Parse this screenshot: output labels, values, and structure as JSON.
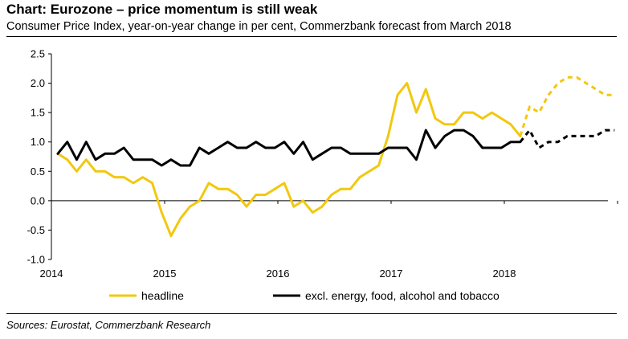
{
  "title": "Chart: Eurozone – price momentum is still weak",
  "subtitle": "Consumer Price Index, year-on-year change in per cent, Commerzbank forecast from March 2018",
  "source": "Sources: Eurostat, Commerzbank Research",
  "chart_data": {
    "type": "line",
    "ylim": [
      -1.0,
      2.5
    ],
    "yticks": [
      "2.5",
      "2.0",
      "1.5",
      "1.0",
      "0.5",
      "0.0",
      "-0.5",
      "-1.0"
    ],
    "ytick_values": [
      2.5,
      2.0,
      1.5,
      1.0,
      0.5,
      0.0,
      -0.5,
      -1.0
    ],
    "xticks": [
      "2014",
      "2015",
      "2016",
      "2017",
      "2018"
    ],
    "x_start": "2014-01",
    "forecast_start": "2018-03",
    "legend_position": "bottom",
    "series": [
      {
        "name": "headline",
        "color": "#F2C80F",
        "values": [
          0.8,
          0.7,
          0.5,
          0.7,
          0.5,
          0.5,
          0.4,
          0.4,
          0.3,
          0.4,
          0.3,
          -0.2,
          -0.6,
          -0.3,
          -0.1,
          0.0,
          0.3,
          0.2,
          0.2,
          0.1,
          -0.1,
          0.1,
          0.1,
          0.2,
          0.3,
          -0.1,
          0.0,
          -0.2,
          -0.1,
          0.1,
          0.2,
          0.2,
          0.4,
          0.5,
          0.6,
          1.1,
          1.8,
          2.0,
          1.5,
          1.9,
          1.4,
          1.3,
          1.3,
          1.5,
          1.5,
          1.4,
          1.5,
          1.4,
          1.3,
          1.1,
          1.6,
          1.5,
          1.8,
          2.0,
          2.1,
          2.1,
          2.0,
          1.9,
          1.8,
          1.8
        ]
      },
      {
        "name": "excl. energy, food, alcohol and tobacco",
        "color": "#000000",
        "values": [
          0.8,
          1.0,
          0.7,
          1.0,
          0.7,
          0.8,
          0.8,
          0.9,
          0.7,
          0.7,
          0.7,
          0.6,
          0.7,
          0.6,
          0.6,
          0.9,
          0.8,
          0.9,
          1.0,
          0.9,
          0.9,
          1.0,
          0.9,
          0.9,
          1.0,
          0.8,
          1.0,
          0.7,
          0.8,
          0.9,
          0.9,
          0.8,
          0.8,
          0.8,
          0.8,
          0.9,
          0.9,
          0.9,
          0.7,
          1.2,
          0.9,
          1.1,
          1.2,
          1.2,
          1.1,
          0.9,
          0.9,
          0.9,
          1.0,
          1.0,
          1.2,
          0.9,
          1.0,
          1.0,
          1.1,
          1.1,
          1.1,
          1.1,
          1.2,
          1.2
        ]
      }
    ]
  }
}
